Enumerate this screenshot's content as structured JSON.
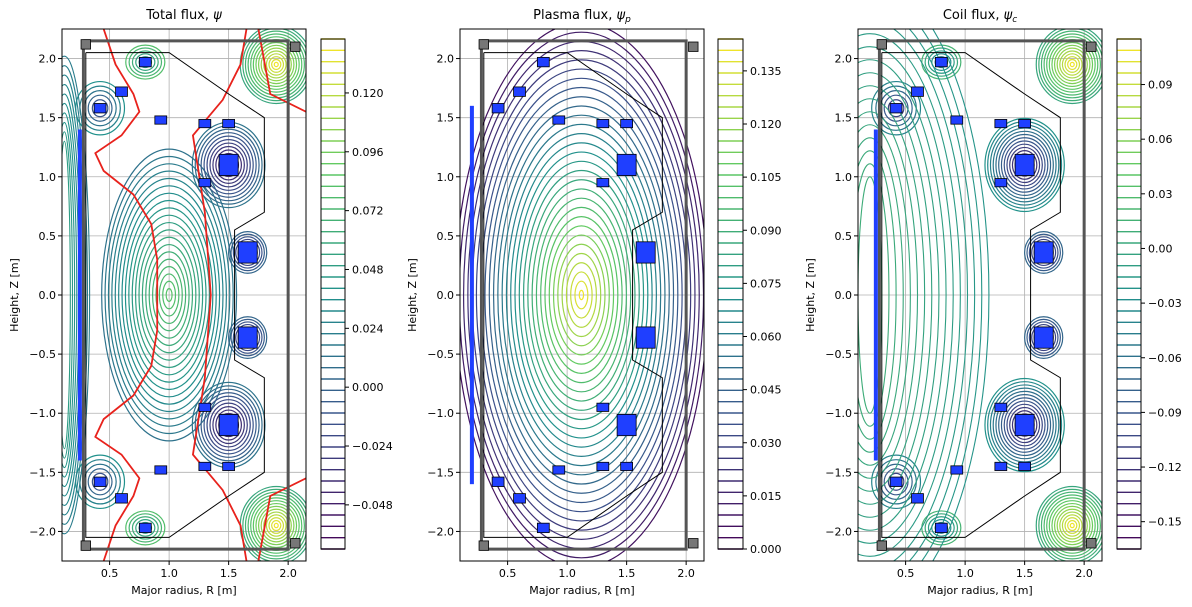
{
  "chart_data": [
    {
      "type": "contour",
      "title_text": "Total flux, ",
      "title_symbol": "ψ",
      "title_subscript": "",
      "xlabel": "Major radius, R [m]",
      "ylabel": "Height, Z [m]",
      "xlim": [
        0.1,
        2.15
      ],
      "ylim": [
        -2.25,
        2.25
      ],
      "xticks": [
        0.5,
        1.0,
        1.5,
        2.0
      ],
      "xtick_labels": [
        "0.5",
        "1.0",
        "1.5",
        "2.0"
      ],
      "yticks": [
        2.0,
        1.5,
        1.0,
        0.5,
        0.0,
        -0.5,
        -1.0,
        -1.5,
        -2.0
      ],
      "ytick_labels": [
        "2.0",
        "1.5",
        "1.0",
        "0.5",
        "0.0",
        "−0.5",
        "−1.0",
        "−1.5",
        "−2.0"
      ],
      "grid": true,
      "separatrix_color": "#e8221c",
      "colorbar": {
        "range": [
          -0.066,
          0.142
        ],
        "ticks": [
          0.12,
          0.096,
          0.072,
          0.048,
          0.024,
          0.0,
          -0.024,
          -0.048
        ],
        "tick_labels": [
          "0.120",
          "0.096",
          "0.072",
          "0.048",
          "0.024",
          "0.000",
          "−0.024",
          "−0.048"
        ]
      }
    },
    {
      "type": "contour",
      "title_text": "Plasma flux, ",
      "title_symbol": "ψ",
      "title_subscript": "p",
      "xlabel": "Major radius, R [m]",
      "ylabel": "Height, Z [m]",
      "xlim": [
        0.1,
        2.15
      ],
      "ylim": [
        -2.25,
        2.25
      ],
      "xticks": [
        0.5,
        1.0,
        1.5,
        2.0
      ],
      "xtick_labels": [
        "0.5",
        "1.0",
        "1.5",
        "2.0"
      ],
      "yticks": [
        2.0,
        1.5,
        1.0,
        0.5,
        0.0,
        -0.5,
        -1.0,
        -1.5,
        -2.0
      ],
      "ytick_labels": [
        "2.0",
        "1.5",
        "1.0",
        "0.5",
        "0.0",
        "−0.5",
        "−1.0",
        "−1.5",
        "−2.0"
      ],
      "grid": true,
      "colorbar": {
        "range": [
          0.0,
          0.144
        ],
        "ticks": [
          0.135,
          0.12,
          0.105,
          0.09,
          0.075,
          0.06,
          0.045,
          0.03,
          0.015,
          0.0
        ],
        "tick_labels": [
          "0.135",
          "0.120",
          "0.105",
          "0.090",
          "0.075",
          "0.060",
          "0.045",
          "0.030",
          "0.015",
          "0.000"
        ]
      }
    },
    {
      "type": "contour",
      "title_text": "Coil flux, ",
      "title_symbol": "ψ",
      "title_subscript": "c",
      "xlabel": "Major radius, R [m]",
      "ylabel": "Height, Z [m]",
      "xlim": [
        0.1,
        2.15
      ],
      "ylim": [
        -2.25,
        2.25
      ],
      "xticks": [
        0.5,
        1.0,
        1.5,
        2.0
      ],
      "xtick_labels": [
        "0.5",
        "1.0",
        "1.5",
        "2.0"
      ],
      "yticks": [
        2.0,
        1.5,
        1.0,
        0.5,
        0.0,
        -0.5,
        -1.0,
        -1.5,
        -2.0
      ],
      "ytick_labels": [
        "2.0",
        "1.5",
        "1.0",
        "0.5",
        "0.0",
        "−0.5",
        "−1.0",
        "−1.5",
        "−2.0"
      ],
      "grid": true,
      "colorbar": {
        "range": [
          -0.165,
          0.115
        ],
        "ticks": [
          0.09,
          0.06,
          0.03,
          0.0,
          -0.03,
          -0.06,
          -0.09,
          -0.12,
          -0.15
        ],
        "tick_labels": [
          "0.09",
          "0.06",
          "0.03",
          "0.00",
          "−0.03",
          "−0.06",
          "−0.09",
          "−0.12",
          "−0.15"
        ]
      }
    }
  ],
  "colormap": [
    "#440154",
    "#3b528b",
    "#21918c",
    "#5ec962",
    "#fde725"
  ],
  "coil_color": "#1f3fff"
}
